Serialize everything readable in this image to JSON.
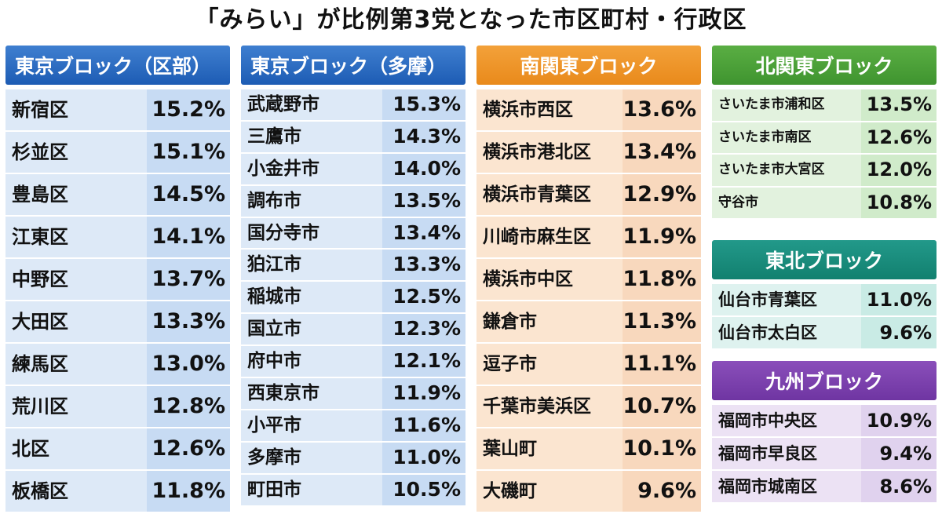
{
  "title": "「みらい」が比例第3党となった市区町村・行政区",
  "blocks": [
    {
      "header": "東京ブロック（区部）",
      "rows": [
        {
          "name": "新宿区",
          "value": "15.2%"
        },
        {
          "name": "杉並区",
          "value": "15.1%"
        },
        {
          "name": "豊島区",
          "value": "14.5%"
        },
        {
          "name": "江東区",
          "value": "14.1%"
        },
        {
          "name": "中野区",
          "value": "13.7%"
        },
        {
          "name": "大田区",
          "value": "13.3%"
        },
        {
          "name": "練馬区",
          "value": "13.0%"
        },
        {
          "name": "荒川区",
          "value": "12.8%"
        },
        {
          "name": "北区",
          "value": "12.6%"
        },
        {
          "name": "板橋区",
          "value": "11.8%"
        }
      ]
    },
    {
      "header": "東京ブロック（多摩）",
      "rows": [
        {
          "name": "武蔵野市",
          "value": "15.3%"
        },
        {
          "name": "三鷹市",
          "value": "14.3%"
        },
        {
          "name": "小金井市",
          "value": "14.0%"
        },
        {
          "name": "調布市",
          "value": "13.5%"
        },
        {
          "name": "国分寺市",
          "value": "13.4%"
        },
        {
          "name": "狛江市",
          "value": "13.3%"
        },
        {
          "name": "稲城市",
          "value": "12.5%"
        },
        {
          "name": "国立市",
          "value": "12.3%"
        },
        {
          "name": "府中市",
          "value": "12.1%"
        },
        {
          "name": "西東京市",
          "value": "11.9%"
        },
        {
          "name": "小平市",
          "value": "11.6%"
        },
        {
          "name": "多摩市",
          "value": "11.0%"
        },
        {
          "name": "町田市",
          "value": "10.5%"
        }
      ]
    },
    {
      "header": "南関東ブロック",
      "rows": [
        {
          "name": "横浜市西区",
          "value": "13.6%"
        },
        {
          "name": "横浜市港北区",
          "value": "13.4%"
        },
        {
          "name": "横浜市青葉区",
          "value": "12.9%"
        },
        {
          "name": "川崎市麻生区",
          "value": "11.9%"
        },
        {
          "name": "横浜市中区",
          "value": "11.8%"
        },
        {
          "name": "鎌倉市",
          "value": "11.3%"
        },
        {
          "name": "逗子市",
          "value": "11.1%"
        },
        {
          "name": "千葉市美浜区",
          "value": "10.7%"
        },
        {
          "name": "葉山町",
          "value": "10.1%"
        },
        {
          "name": "大磯町",
          "value": "9.6%"
        }
      ]
    },
    {
      "header": "北関東ブロック",
      "rows": [
        {
          "name": "さいたま市浦和区",
          "value": "13.5%"
        },
        {
          "name": "さいたま市南区",
          "value": "12.6%"
        },
        {
          "name": "さいたま市大宮区",
          "value": "12.0%"
        },
        {
          "name": "守谷市",
          "value": "10.8%"
        }
      ]
    },
    {
      "header": "東北ブロック",
      "rows": [
        {
          "name": "仙台市青葉区",
          "value": "11.0%"
        },
        {
          "name": "仙台市太白区",
          "value": "9.6%"
        }
      ]
    },
    {
      "header": "九州ブロック",
      "rows": [
        {
          "name": "福岡市中央区",
          "value": "10.9%"
        },
        {
          "name": "福岡市早良区",
          "value": "9.4%"
        },
        {
          "name": "福岡市城南区",
          "value": "8.6%"
        }
      ]
    }
  ],
  "colors": {
    "tokyo": "#2a6bc2",
    "minami_kanto": "#ee9327",
    "kita_kanto": "#4aa138",
    "tohoku": "#1a8d7e",
    "kyushu": "#7c41ad"
  }
}
